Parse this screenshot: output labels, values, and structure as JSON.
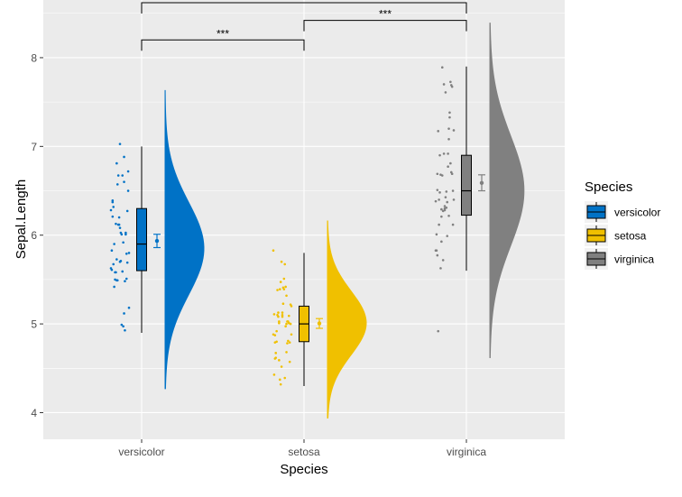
{
  "chart_data": {
    "type": "raincloud",
    "xlabel": "Species",
    "ylabel": "Sepal.Length",
    "categories": [
      "versicolor",
      "setosa",
      "virginica"
    ],
    "ylim": [
      3.7,
      8.65
    ],
    "yticks": [
      4,
      5,
      6,
      7,
      8
    ],
    "grid": true,
    "legend": {
      "title": "Species",
      "position": "right",
      "entries": [
        "versicolor",
        "setosa",
        "virginica"
      ]
    },
    "colors": {
      "versicolor": "#0072C6",
      "setosa": "#F0C000",
      "virginica": "#808080"
    },
    "boxplots": [
      {
        "category": "versicolor",
        "min": 4.9,
        "q1": 5.6,
        "median": 5.9,
        "q3": 6.3,
        "max": 7.0
      },
      {
        "category": "setosa",
        "min": 4.3,
        "q1": 4.8,
        "median": 5.0,
        "q3": 5.2,
        "max": 5.8
      },
      {
        "category": "virginica",
        "min": 5.6,
        "q1": 6.225,
        "median": 6.5,
        "q3": 6.9,
        "max": 7.9
      }
    ],
    "means": [
      {
        "category": "versicolor",
        "mean": 5.936,
        "lower": 5.86,
        "upper": 6.01
      },
      {
        "category": "setosa",
        "mean": 5.006,
        "lower": 4.95,
        "upper": 5.06
      },
      {
        "category": "virginica",
        "mean": 6.588,
        "lower": 6.5,
        "upper": 6.68
      }
    ],
    "densities": [
      {
        "category": "versicolor",
        "from": 4.27,
        "to": 7.63,
        "mode": 5.85,
        "sd": 0.52,
        "scale": 1.0
      },
      {
        "category": "setosa",
        "from": 3.94,
        "to": 6.16,
        "mode": 5.01,
        "sd": 0.36,
        "scale": 1.0
      },
      {
        "category": "virginica",
        "from": 4.62,
        "to": 8.39,
        "mode": 6.5,
        "sd": 0.62,
        "scale": 0.88
      }
    ],
    "points": [
      {
        "category": "versicolor",
        "values": [
          7.0,
          6.4,
          6.9,
          5.5,
          6.5,
          5.7,
          6.3,
          4.9,
          6.6,
          5.2,
          5.0,
          5.9,
          6.0,
          6.1,
          5.6,
          6.7,
          5.6,
          5.8,
          6.2,
          5.6,
          5.9,
          6.1,
          6.3,
          6.1,
          6.4,
          6.6,
          6.8,
          6.7,
          6.0,
          5.7,
          5.5,
          5.5,
          5.8,
          6.0,
          5.4,
          6.0,
          6.7,
          6.3,
          5.6,
          5.5,
          5.5,
          6.1,
          5.8,
          5.0,
          5.6,
          5.7,
          5.7,
          6.2,
          5.1,
          5.7
        ]
      },
      {
        "category": "setosa",
        "values": [
          5.1,
          4.9,
          4.7,
          4.6,
          5.0,
          5.4,
          4.6,
          5.0,
          4.4,
          4.9,
          5.4,
          4.8,
          4.8,
          4.3,
          5.8,
          5.7,
          5.4,
          5.1,
          5.7,
          5.1,
          5.4,
          5.1,
          4.6,
          5.1,
          4.8,
          5.0,
          5.0,
          5.2,
          5.2,
          4.7,
          4.8,
          5.4,
          5.2,
          5.5,
          4.9,
          5.0,
          5.5,
          4.9,
          4.4,
          5.1,
          5.0,
          4.5,
          4.4,
          5.0,
          5.1,
          4.8,
          5.1,
          4.6,
          5.3,
          5.0
        ]
      },
      {
        "category": "virginica",
        "values": [
          6.3,
          5.8,
          7.1,
          6.3,
          6.5,
          7.6,
          4.9,
          7.3,
          6.7,
          7.2,
          6.5,
          6.4,
          6.8,
          5.7,
          5.8,
          6.4,
          6.5,
          7.7,
          7.7,
          6.0,
          6.9,
          5.6,
          7.7,
          6.3,
          6.7,
          7.2,
          6.2,
          6.1,
          6.4,
          7.2,
          7.4,
          7.9,
          6.4,
          6.3,
          6.1,
          7.7,
          6.3,
          6.4,
          6.0,
          6.9,
          6.7,
          6.9,
          5.8,
          6.8,
          6.7,
          6.7,
          6.3,
          6.5,
          6.2,
          5.9
        ]
      }
    ],
    "comparisons": [
      {
        "from": "versicolor",
        "to": "setosa",
        "label": "***"
      },
      {
        "from": "setosa",
        "to": "virginica",
        "label": "***"
      },
      {
        "from": "versicolor",
        "to": "virginica",
        "label": "***"
      }
    ]
  }
}
